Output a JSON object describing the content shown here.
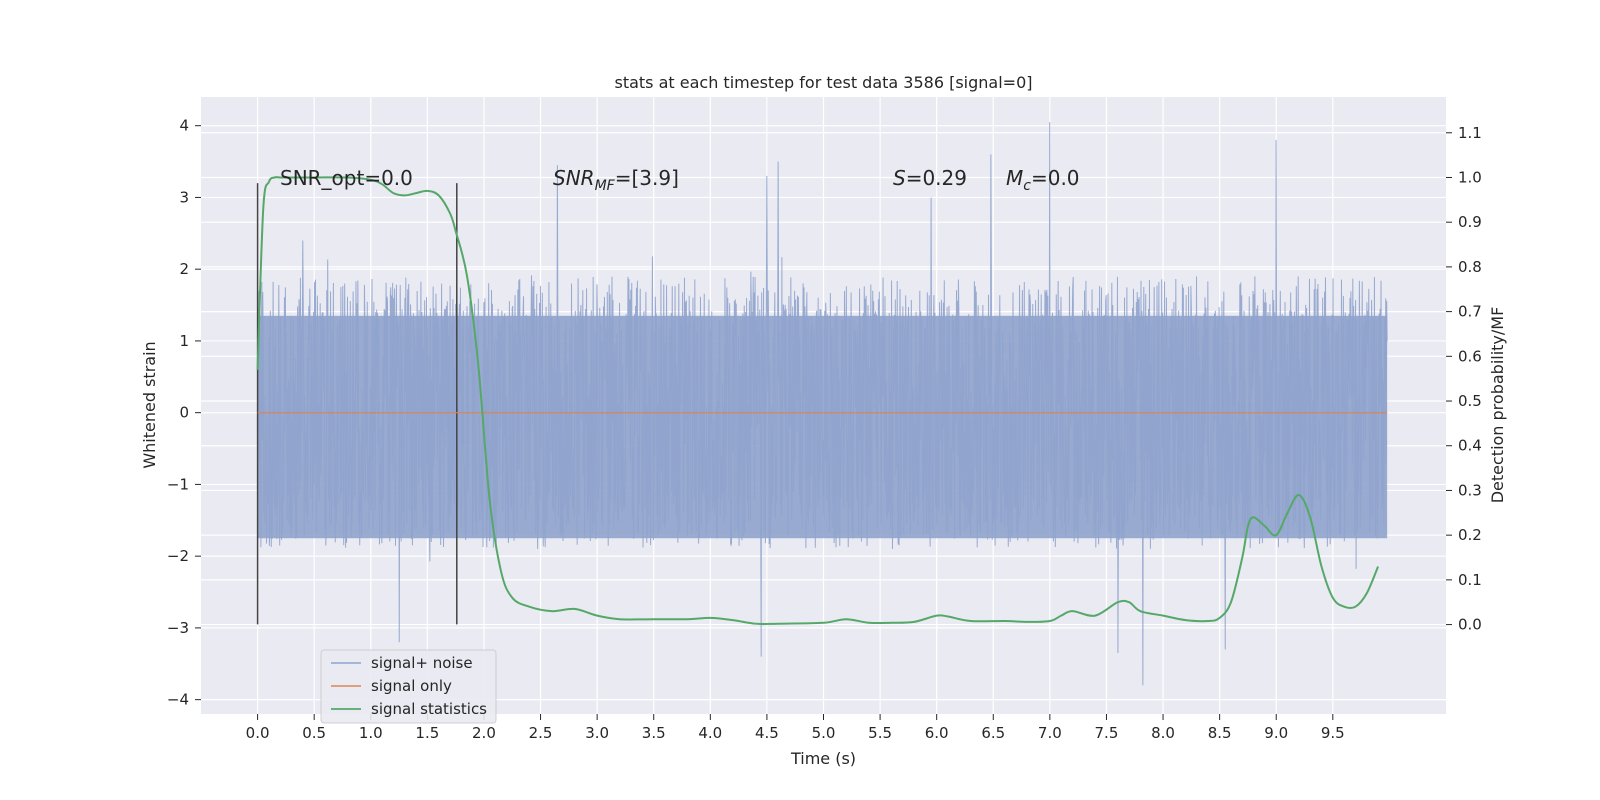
{
  "chart_data": {
    "type": "line",
    "title": "stats at each timestep for test data 3586 [signal=0]",
    "xlabel": "Time (s)",
    "ylabel": "Whitened strain",
    "ylabel_right": "Detection probability/MF",
    "xlim": [
      -0.5,
      10.5
    ],
    "ylim": [
      -4.2,
      4.4
    ],
    "ylim_right": [
      -0.2,
      1.18
    ],
    "x_ticks": [
      "0.0",
      "0.5",
      "1.0",
      "1.5",
      "2.0",
      "2.5",
      "3.0",
      "3.5",
      "4.0",
      "4.5",
      "5.0",
      "5.5",
      "6.0",
      "6.5",
      "7.0",
      "7.5",
      "8.0",
      "8.5",
      "9.0",
      "9.5"
    ],
    "y_ticks": [
      "−4",
      "−3",
      "−2",
      "−1",
      "0",
      "1",
      "2",
      "3",
      "4"
    ],
    "y_ticks_right": [
      "0.0",
      "0.1",
      "0.2",
      "0.3",
      "0.4",
      "0.5",
      "0.6",
      "0.7",
      "0.8",
      "0.9",
      "1.0",
      "1.1"
    ],
    "grid": true,
    "legend_position": "lower-left",
    "annotations": {
      "snr_opt": "SNR_opt=0.0",
      "snr_mf": "SNR",
      "snr_mf_sub": "MF",
      "snr_mf_value": "=[3.9]",
      "s_symbol": "S",
      "s_value": "=0.29",
      "mc_symbol": "M",
      "mc_sub": "c",
      "mc_value": "=0.0"
    },
    "vertical_markers": [
      0.0,
      1.76
    ],
    "series": [
      {
        "name": "signal+ noise",
        "color": "#8fa3cc",
        "axis": "left",
        "x_range": [
          0.0,
          9.98
        ],
        "envelope_percentiles": {
          "p_inner_low": -1.75,
          "p_inner_high": 1.35
        },
        "extremes": [
          {
            "x": 0.4,
            "y": 2.4
          },
          {
            "x": 1.25,
            "y": -3.2
          },
          {
            "x": 2.65,
            "y": 3.45
          },
          {
            "x": 4.5,
            "y": 3.3
          },
          {
            "x": 4.45,
            "y": -3.4
          },
          {
            "x": 4.6,
            "y": 3.5
          },
          {
            "x": 5.95,
            "y": 3.0
          },
          {
            "x": 6.48,
            "y": 3.6
          },
          {
            "x": 7.0,
            "y": 4.05
          },
          {
            "x": 7.82,
            "y": -3.8
          },
          {
            "x": 7.6,
            "y": -3.35
          },
          {
            "x": 8.55,
            "y": -3.3
          },
          {
            "x": 9.0,
            "y": 3.8
          }
        ]
      },
      {
        "name": "signal only",
        "color": "#dd8452",
        "axis": "left",
        "x": [
          0.0,
          9.98
        ],
        "y": [
          0.0,
          0.0
        ]
      },
      {
        "name": "signal statistics",
        "color": "#55a868",
        "axis": "right",
        "x": [
          0.0,
          0.05,
          0.1,
          0.15,
          0.2,
          0.3,
          0.5,
          0.8,
          1.0,
          1.1,
          1.2,
          1.3,
          1.4,
          1.5,
          1.6,
          1.7,
          1.75,
          1.85,
          1.95,
          2.05,
          2.15,
          2.25,
          2.4,
          2.6,
          2.8,
          3.0,
          3.2,
          3.5,
          3.8,
          4.0,
          4.2,
          4.4,
          4.6,
          5.0,
          5.2,
          5.4,
          5.6,
          5.8,
          6.0,
          6.1,
          6.3,
          6.6,
          6.8,
          7.0,
          7.1,
          7.2,
          7.4,
          7.6,
          7.7,
          7.8,
          8.0,
          8.2,
          8.4,
          8.5,
          8.6,
          8.7,
          8.75,
          8.8,
          8.9,
          9.0,
          9.1,
          9.2,
          9.3,
          9.4,
          9.5,
          9.6,
          9.7,
          9.8,
          9.9
        ],
        "y": [
          0.57,
          0.93,
          0.99,
          1.0,
          1.0,
          1.0,
          1.0,
          1.0,
          0.995,
          0.985,
          0.965,
          0.96,
          0.965,
          0.97,
          0.96,
          0.92,
          0.88,
          0.78,
          0.58,
          0.28,
          0.12,
          0.06,
          0.04,
          0.03,
          0.035,
          0.02,
          0.012,
          0.012,
          0.012,
          0.015,
          0.01,
          0.002,
          0.002,
          0.004,
          0.012,
          0.004,
          0.004,
          0.006,
          0.02,
          0.018,
          0.008,
          0.008,
          0.006,
          0.008,
          0.02,
          0.03,
          0.02,
          0.05,
          0.05,
          0.03,
          0.02,
          0.01,
          0.008,
          0.015,
          0.05,
          0.15,
          0.22,
          0.24,
          0.22,
          0.2,
          0.25,
          0.29,
          0.24,
          0.13,
          0.06,
          0.04,
          0.04,
          0.07,
          0.13
        ]
      }
    ]
  }
}
